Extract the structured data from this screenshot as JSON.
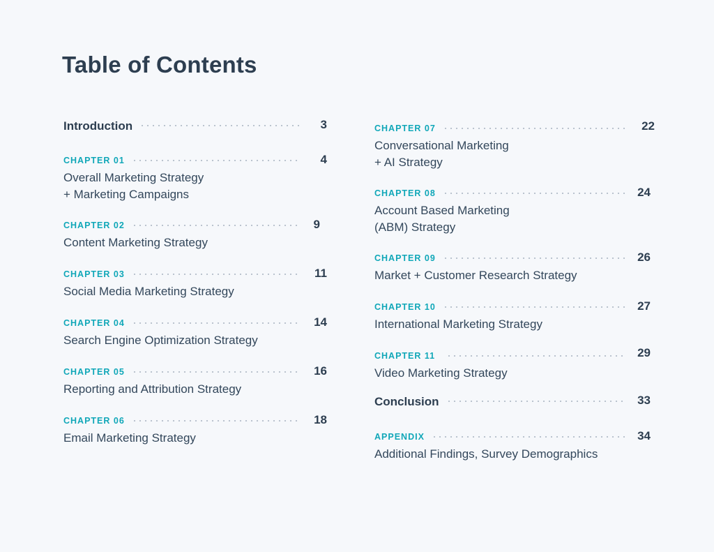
{
  "page": {
    "title": "Table of Contents"
  },
  "left": [
    {
      "label": "Introduction",
      "page": "3",
      "title": ""
    },
    {
      "label": "CHAPTER 01",
      "page": "4",
      "title": "Overall Marketing Strategy\n+ Marketing Campaigns"
    },
    {
      "label": "CHAPTER 02",
      "page": "9",
      "title": "Content Marketing Strategy"
    },
    {
      "label": "CHAPTER 03",
      "page": "11",
      "title": "Social Media Marketing Strategy"
    },
    {
      "label": "CHAPTER 04",
      "page": "14",
      "title": "Search Engine Optimization Strategy"
    },
    {
      "label": "CHAPTER 05",
      "page": "16",
      "title": "Reporting and Attribution Strategy"
    },
    {
      "label": "CHAPTER 06",
      "page": "18",
      "title": "Email Marketing Strategy"
    }
  ],
  "right": [
    {
      "label": "CHAPTER 07",
      "page": "22",
      "title": "Conversational Marketing\n+ AI Strategy"
    },
    {
      "label": "CHAPTER 08",
      "page": "24",
      "title": "Account Based Marketing\n(ABM) Strategy"
    },
    {
      "label": "CHAPTER 09",
      "page": "26",
      "title": "Market + Customer Research Strategy"
    },
    {
      "label": "CHAPTER 10",
      "page": "27",
      "title": "International Marketing Strategy"
    },
    {
      "label": "CHAPTER 11",
      "page": "29",
      "title": "Video Marketing Strategy"
    },
    {
      "label": "Conclusion",
      "page": "33",
      "title": ""
    },
    {
      "label": "APPENDIX",
      "page": "34",
      "title": "Additional Findings, Survey Demographics"
    }
  ]
}
